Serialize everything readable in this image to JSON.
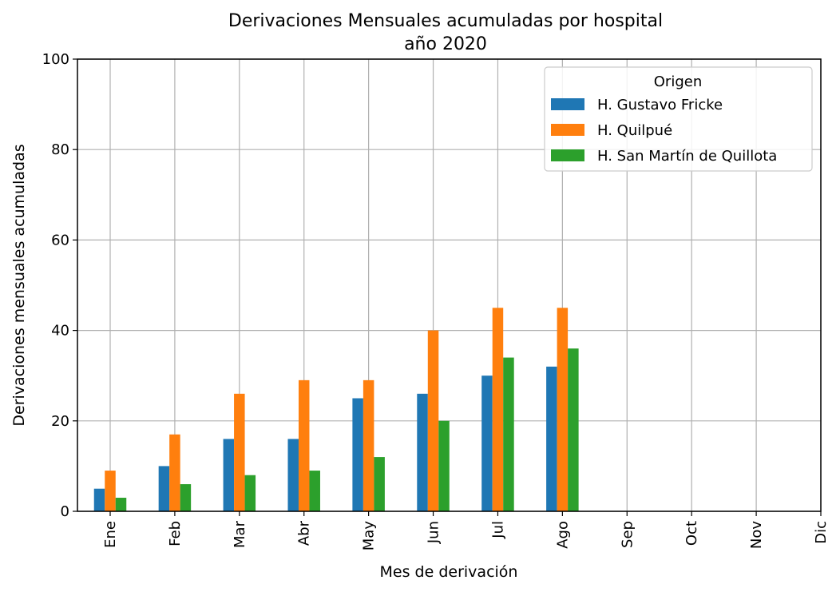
{
  "chart_data": {
    "type": "bar",
    "title": [
      "Derivaciones Mensuales acumuladas por hospital",
      "año 2020"
    ],
    "xlabel": "Mes de derivación",
    "ylabel": "Derivaciones mensuales acumuladas",
    "categories": [
      "Ene",
      "Feb",
      "Mar",
      "Abr",
      "May",
      "Jun",
      "Jul",
      "Ago",
      "Sep",
      "Oct",
      "Nov",
      "Dic"
    ],
    "ylim": [
      0,
      100
    ],
    "yticks": [
      0,
      20,
      40,
      60,
      80,
      100
    ],
    "grid": true,
    "legend": {
      "title": "Origen",
      "position": "top-right"
    },
    "series": [
      {
        "name": "H. Gustavo Fricke",
        "color": "#1f77b4",
        "values": [
          5,
          10,
          16,
          16,
          25,
          26,
          30,
          32,
          0,
          0,
          0,
          0
        ]
      },
      {
        "name": "H. Quilpué",
        "color": "#ff7f0e",
        "values": [
          9,
          17,
          26,
          29,
          29,
          40,
          45,
          45,
          0,
          0,
          0,
          0
        ]
      },
      {
        "name": "H. San Martín de Quillota",
        "color": "#2ca02c",
        "values": [
          3,
          6,
          8,
          9,
          12,
          20,
          34,
          36,
          0,
          0,
          0,
          0
        ]
      }
    ]
  }
}
